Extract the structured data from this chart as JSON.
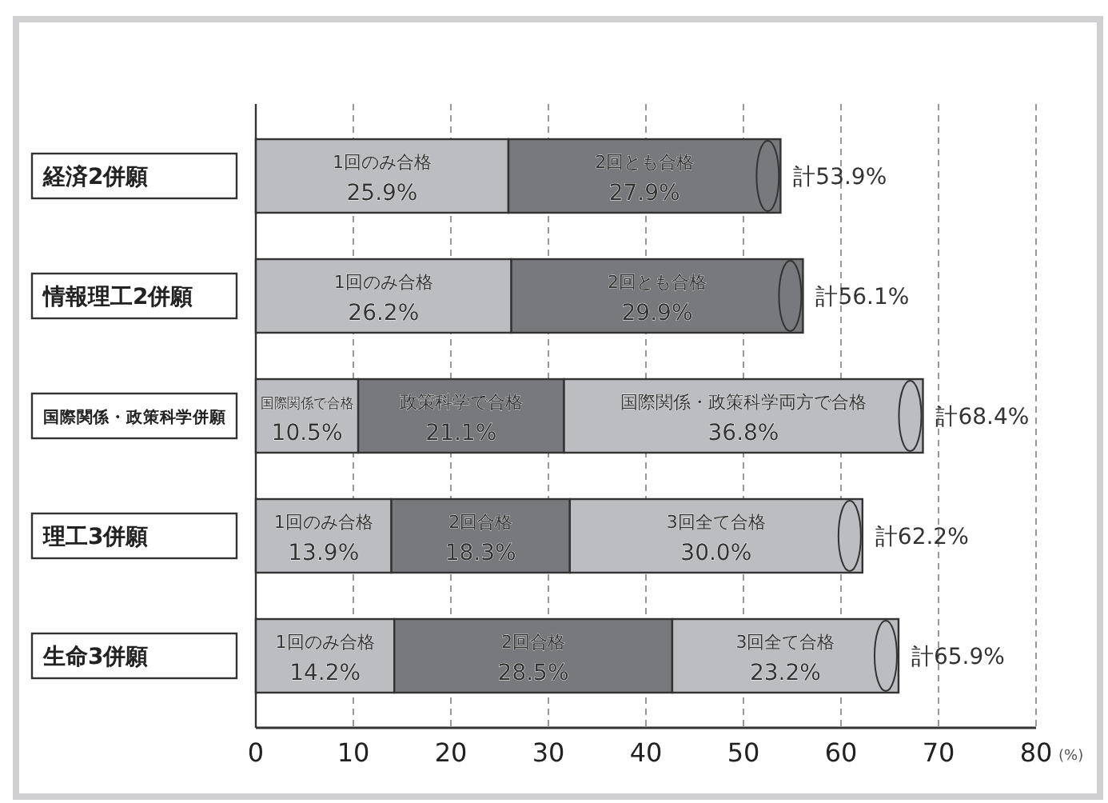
{
  "chart_data": {
    "type": "bar",
    "orientation": "horizontal",
    "stacked": true,
    "categories": [
      "経済2併願",
      "情報理工2併願",
      "国際関係・政策科学併願",
      "理工3併願",
      "生命3併願"
    ],
    "series": [
      {
        "color": "#bcbdc0",
        "values": [
          25.9,
          26.2,
          10.5,
          13.9,
          14.2
        ],
        "value_labels": [
          "25.9%",
          "26.2%",
          "10.5%",
          "13.9%",
          "14.2%"
        ]
      },
      {
        "color": "#78797c",
        "values": [
          27.9,
          29.9,
          21.1,
          18.3,
          28.5
        ],
        "value_labels": [
          "27.9%",
          "29.9%",
          "21.1%",
          "18.3%",
          "28.5%"
        ]
      },
      {
        "color": "#bcbdc0",
        "values": [
          null,
          null,
          36.8,
          30.0,
          23.2
        ],
        "value_labels": [
          null,
          null,
          "36.8%",
          "30.0%",
          "23.2%"
        ]
      }
    ],
    "annotations": [
      "1回のみ合格",
      "2回とも合格",
      "1回のみ合格",
      "2回とも合格",
      "国際関係で合格",
      "政策科学で合格",
      "国際関係・政策科学両方で合格",
      "1回のみ合格",
      "2回合格",
      "3回全て合格",
      "1回のみ合格",
      "2回合格",
      "3回全て合格"
    ],
    "totals": [
      "計53.9%",
      "計56.1%",
      "計68.4%",
      "計62.2%",
      "計65.9%"
    ],
    "xlim": [
      0,
      80
    ],
    "xticks": [
      0,
      10,
      20,
      30,
      40,
      50,
      60,
      70,
      80
    ],
    "xlabel": "(%)",
    "grid": "x"
  }
}
